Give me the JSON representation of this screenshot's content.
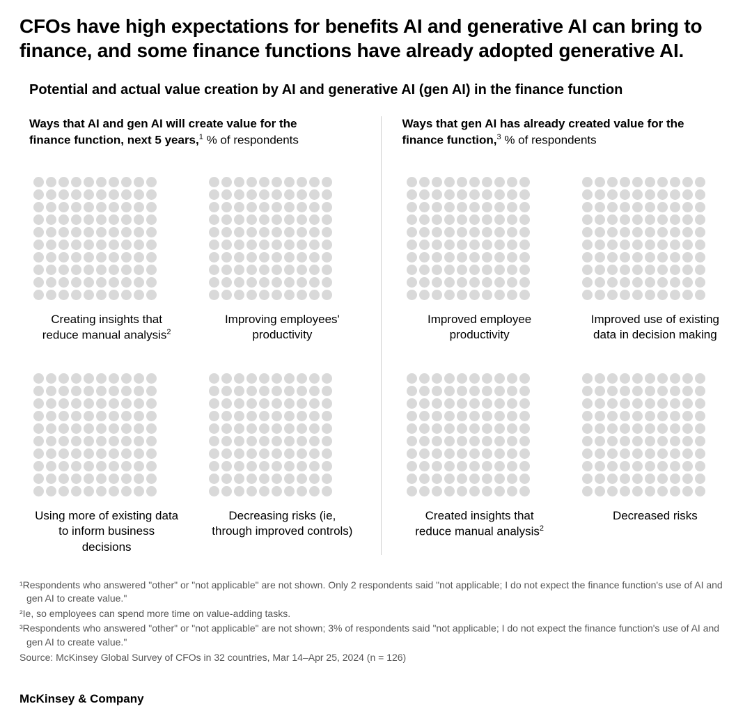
{
  "headline": "CFOs have high expectations for benefits AI and generative AI can bring to finance, and some finance functions have already adopted generative AI.",
  "subtitle": "Potential and actual value creation by AI and generative AI (gen AI) in the finance function",
  "dot_color_empty": "#d9d9d9",
  "dot_cols": 10,
  "dot_rows": 10,
  "panels": {
    "left": {
      "title_bold": "Ways that AI and gen AI will create value for the finance function, next 5 years,",
      "title_sup": "1",
      "title_rest": " % of respondents",
      "tiles": [
        {
          "label": "Creating insights that reduce manual analysis",
          "sup": "2",
          "value": 0
        },
        {
          "label": "Improving employees' productivity",
          "sup": "",
          "value": 0
        },
        {
          "label": "Using more of existing data to inform business decisions",
          "sup": "",
          "value": 0
        },
        {
          "label": "Decreasing risks (ie, through improved controls)",
          "sup": "",
          "value": 0
        }
      ]
    },
    "right": {
      "title_bold": "Ways that gen AI has already created value for the finance function,",
      "title_sup": "3",
      "title_rest": " % of respondents",
      "tiles": [
        {
          "label": "Improved employee productivity",
          "sup": "",
          "value": 0
        },
        {
          "label": "Improved use of existing data in decision making",
          "sup": "",
          "value": 0
        },
        {
          "label": "Created insights that reduce manual analysis",
          "sup": "2",
          "value": 0
        },
        {
          "label": "Decreased risks",
          "sup": "",
          "value": 0
        }
      ]
    }
  },
  "footnotes": [
    "¹Respondents who answered \"other\" or \"not applicable\" are not shown. Only 2 respondents said \"not applicable; I do not expect the finance function's use of AI and gen AI to create value.\"",
    "²Ie, so employees can spend more time on value-adding tasks.",
    "³Respondents who answered \"other\" or \"not applicable\" are not shown; 3% of respondents said \"not applicable; I do not expect the finance function's use of AI and gen AI to create value.\"",
    " Source: McKinsey Global Survey of CFOs in 32 countries, Mar 14–Apr 25, 2024 (n = 126)"
  ],
  "brand": "McKinsey & Company"
}
